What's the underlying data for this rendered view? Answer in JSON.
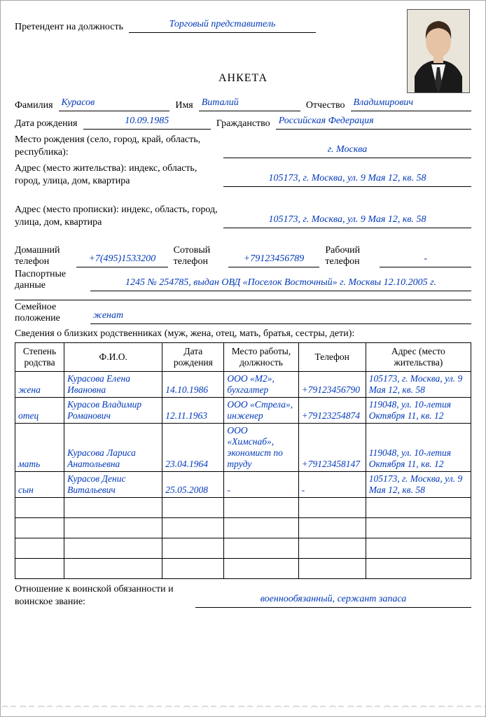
{
  "header": {
    "applicant_label": "Претендент на должность",
    "position": "Торговый представитель",
    "title": "АНКЕТА"
  },
  "name": {
    "surname_label": "Фамилия",
    "surname": "Курасов",
    "firstname_label": "Имя",
    "firstname": "Виталий",
    "patronymic_label": "Отчество",
    "patronymic": "Владимирович"
  },
  "birth": {
    "dob_label": "Дата рождения",
    "dob": "10.09.1985",
    "citizenship_label": "Гражданство",
    "citizenship": "Российская Федерация",
    "birthplace_label": "Место рождения (село, город, край, область, республика):",
    "birthplace": "г. Москва"
  },
  "address_live": {
    "label": "Адрес (место жительства): индекс, область, город, улица, дом, квартира",
    "value": "105173, г. Москва, ул. 9 Мая 12, кв. 58"
  },
  "address_reg": {
    "label": "Адрес (место прописки): индекс, область, город, улица, дом, квартира",
    "value": "105173, г. Москва, ул. 9 Мая 12, кв. 58"
  },
  "phones": {
    "home_label1": "Домашний",
    "home_label2": "телефон",
    "home": "+7(495)1533200",
    "cell_label1": "Сотовый",
    "cell_label2": "телефон",
    "cell": "+79123456789",
    "work_label1": "Рабочий",
    "work_label2": "телефон",
    "work": "-"
  },
  "passport": {
    "label1": "Паспортные",
    "label2": "данные",
    "value": "1245 № 254785, выдан ОВД «Поселок Восточный» г. Москвы 12.10.2005 г."
  },
  "family": {
    "status_label1": "Семейное",
    "status_label2": "положение",
    "status": "женат",
    "relatives_heading": "Сведения о близких родственниках (муж, жена, отец, мать, братья, сестры, дети):"
  },
  "table": {
    "columns": {
      "rel": "Степень родства",
      "fio": "Ф.И.О.",
      "dob": "Дата рождения",
      "work": "Место работы, должность",
      "phone": "Телефон",
      "addr": "Адрес (место жительства)"
    },
    "col_widths": [
      "70px",
      "140px",
      "88px",
      "106px",
      "96px",
      "150px"
    ],
    "rows": [
      {
        "rel": "жена",
        "fio": "Курасова Елена Ивановна",
        "dob": "14.10.1986",
        "work": "ООО «М2», бухгалтер",
        "phone": "+79123456790",
        "addr": "105173, г. Москва, ул. 9 Мая 12, кв. 58"
      },
      {
        "rel": "отец",
        "fio": "Курасов Владимир Романович",
        "dob": "12.11.1963",
        "work": "ООО «Стрела», инженер",
        "phone": "+79123254874",
        "addr": "119048, ул. 10-летия Октября 11, кв. 12"
      },
      {
        "rel": "мать",
        "fio": "Курасова Лариса Анатольевна",
        "dob": "23.04.1964",
        "work": "ООО «Химснаб», экономист по труду",
        "phone": "+79123458147",
        "addr": "119048, ул. 10-летия Октября 11, кв. 12"
      },
      {
        "rel": "сын",
        "fio": "Курасов Денис Витальевич",
        "dob": "25.05.2008",
        "work": "-",
        "phone": "-",
        "addr": "105173, г. Москва, ул. 9 Мая 12, кв. 58"
      }
    ],
    "empty_rows": 4
  },
  "military": {
    "label": "Отношение к воинской обязанности и воинское звание:",
    "value": "военнообязанный, сержант запаса"
  },
  "photo_colors": {
    "bg": "#e9e5db",
    "jacket": "#1a1a1a",
    "shirt": "#f5f5f5",
    "skin": "#e7c3a5",
    "hair": "#3b2a1c",
    "tie": "#2a2a2a"
  }
}
